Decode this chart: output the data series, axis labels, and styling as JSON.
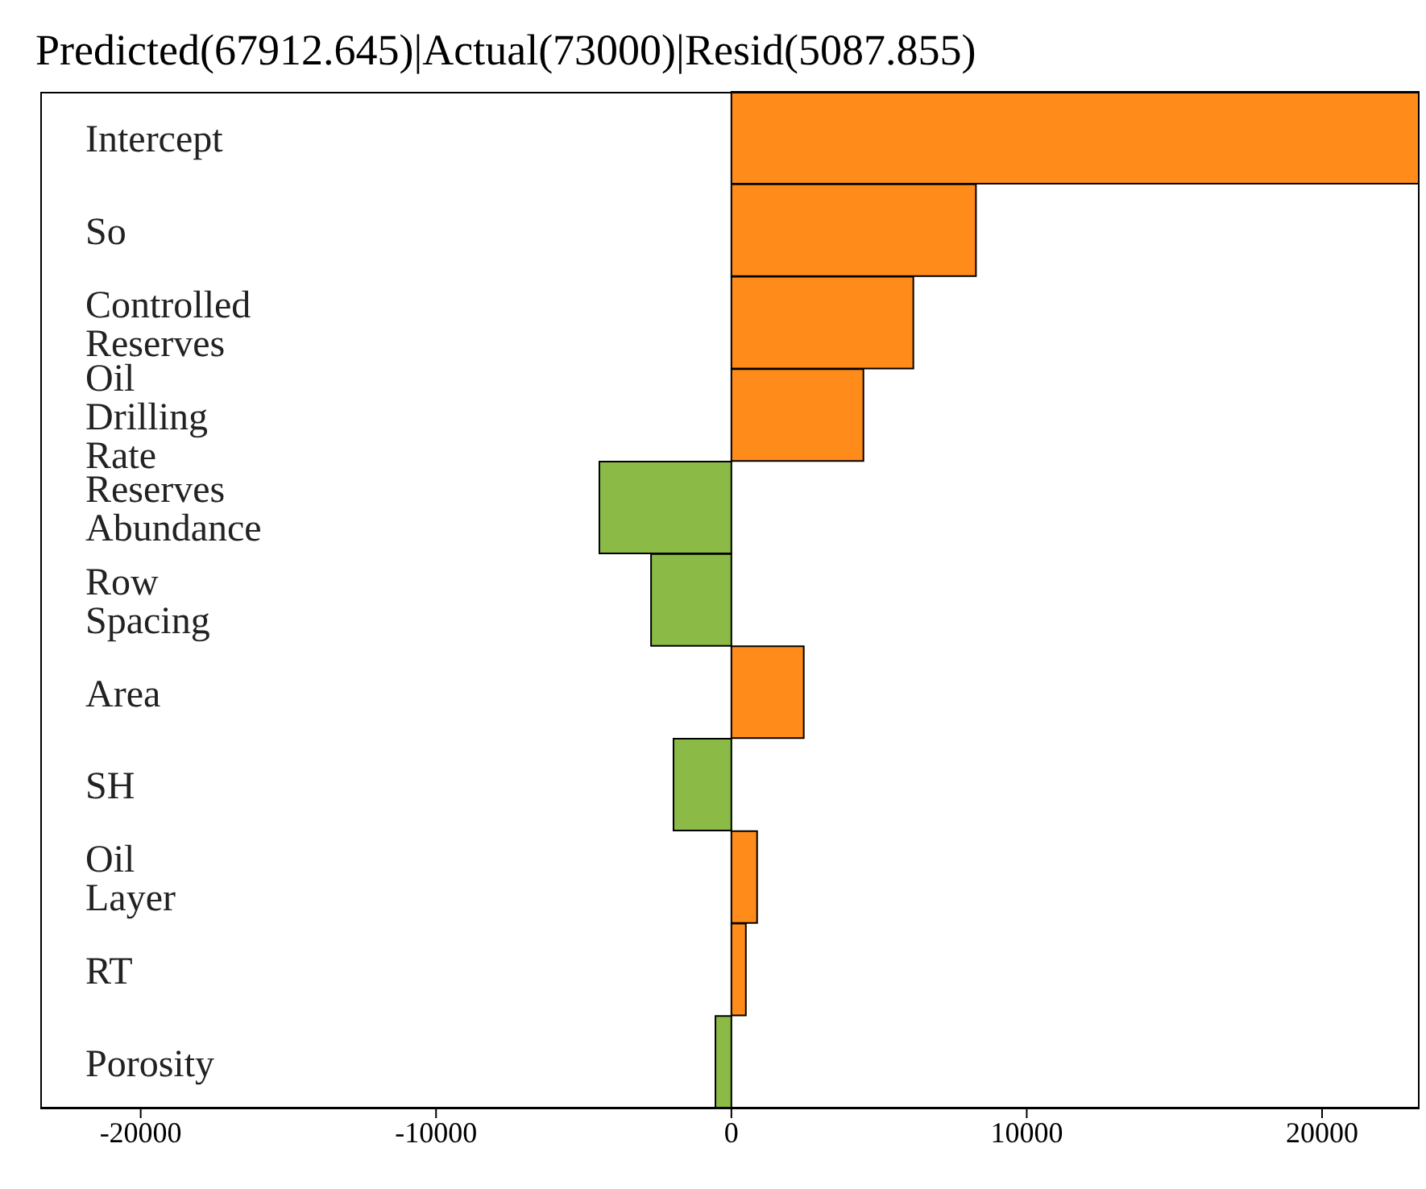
{
  "chart_data": {
    "type": "bar",
    "orientation": "horizontal",
    "title": "Predicted(67912.645)|Actual(73000)|Resid(5087.855)",
    "categories": [
      "Intercept",
      "So",
      "Controlled Reserves",
      "Oil Drilling Rate",
      "Reserves Abundance",
      "Row Spacing",
      "Area",
      "SH",
      "Oil Layer",
      "RT",
      "Porosity"
    ],
    "values": [
      23300,
      8280,
      6160,
      4470,
      -4470,
      -2720,
      2450,
      -1960,
      870,
      490,
      -540
    ],
    "colors": [
      "#ff8c1a",
      "#ff8c1a",
      "#ff8c1a",
      "#ff8c1a",
      "#8bba46",
      "#8bba46",
      "#ff8c1a",
      "#8bba46",
      "#ff8c1a",
      "#ff8c1a",
      "#8bba46"
    ],
    "xlim": [
      -23400,
      23300
    ],
    "xticks": [
      -20000,
      -10000,
      0,
      10000,
      20000
    ],
    "grid": false
  }
}
